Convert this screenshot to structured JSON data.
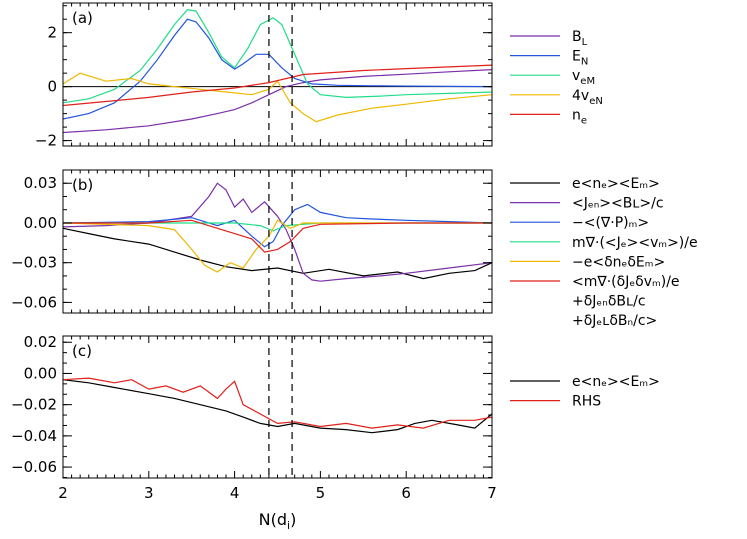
{
  "chart_data": [
    {
      "type": "line",
      "panel_label": "(a)",
      "xlim": [
        2,
        7
      ],
      "ylim": [
        -2.2,
        3.1
      ],
      "yticks": [
        -2,
        0,
        2
      ],
      "ytick_labels": [
        "−2",
        "0",
        "2"
      ],
      "vlines": [
        4.4,
        4.67
      ],
      "zero_line": true,
      "legend_position": "right",
      "series": [
        {
          "key": "BL",
          "color": "#7b2fa8",
          "x": [
            2.0,
            2.5,
            3.0,
            3.5,
            3.8,
            4.0,
            4.2,
            4.4,
            4.6,
            4.8,
            5.0,
            5.5,
            6.0,
            6.5,
            7.0
          ],
          "y": [
            -1.7,
            -1.6,
            -1.45,
            -1.2,
            -1.0,
            -0.85,
            -0.6,
            -0.3,
            0.0,
            0.15,
            0.25,
            0.38,
            0.46,
            0.55,
            0.63
          ]
        },
        {
          "key": "EN",
          "color": "#2255dd",
          "x": [
            2.0,
            2.3,
            2.6,
            2.9,
            3.1,
            3.3,
            3.45,
            3.55,
            3.7,
            3.85,
            4.0,
            4.1,
            4.25,
            4.4,
            4.55,
            4.7,
            4.9,
            5.2,
            5.6,
            6.0,
            6.5,
            7.0
          ],
          "y": [
            -1.2,
            -1.0,
            -0.6,
            0.2,
            1.0,
            1.9,
            2.5,
            2.4,
            1.8,
            1.0,
            0.65,
            0.85,
            1.2,
            1.2,
            0.7,
            0.3,
            0.1,
            0.05,
            0.03,
            0.02,
            0.01,
            0.0
          ]
        },
        {
          "key": "veM",
          "color": "#22dd88",
          "x": [
            2.0,
            2.3,
            2.6,
            2.9,
            3.1,
            3.3,
            3.45,
            3.55,
            3.7,
            3.85,
            4.0,
            4.15,
            4.3,
            4.45,
            4.55,
            4.7,
            4.85,
            5.0,
            5.3,
            5.7,
            6.0,
            6.5,
            7.0
          ],
          "y": [
            -0.6,
            -0.45,
            -0.1,
            0.6,
            1.4,
            2.3,
            2.85,
            2.8,
            2.0,
            1.1,
            0.7,
            1.4,
            2.3,
            2.55,
            2.3,
            1.2,
            0.1,
            -0.3,
            -0.4,
            -0.35,
            -0.3,
            -0.25,
            -0.2
          ]
        },
        {
          "key": "4veN",
          "color": "#f0b800",
          "x": [
            2.0,
            2.2,
            2.5,
            2.8,
            3.0,
            3.3,
            3.6,
            3.9,
            4.2,
            4.4,
            4.5,
            4.65,
            4.8,
            4.95,
            5.2,
            5.6,
            6.0,
            6.5,
            7.0
          ],
          "y": [
            0.1,
            0.5,
            0.2,
            0.3,
            0.1,
            0.0,
            -0.1,
            -0.2,
            -0.3,
            -0.1,
            0.2,
            -0.6,
            -1.0,
            -1.3,
            -1.05,
            -0.8,
            -0.65,
            -0.45,
            -0.3
          ]
        },
        {
          "key": "ne",
          "color": "#e0201a",
          "x": [
            2.0,
            2.5,
            3.0,
            3.5,
            4.0,
            4.4,
            4.8,
            5.5,
            6.0,
            6.5,
            7.0
          ],
          "y": [
            -0.7,
            -0.55,
            -0.4,
            -0.2,
            -0.05,
            0.15,
            0.45,
            0.6,
            0.67,
            0.73,
            0.8
          ]
        }
      ],
      "legend": [
        {
          "main": "B",
          "sub": "L",
          "rest": "",
          "color": "#7b2fa8"
        },
        {
          "main": "E",
          "sub": "N",
          "rest": "",
          "color": "#2255dd"
        },
        {
          "main": "v",
          "sub": "eM",
          "rest": "",
          "color": "#22dd88"
        },
        {
          "main": "4v",
          "sub": "eN",
          "rest": "",
          "color": "#f0b800"
        },
        {
          "main": "n",
          "sub": "e",
          "rest": "",
          "color": "#e0201a"
        }
      ]
    },
    {
      "type": "line",
      "panel_label": "(b)",
      "xlim": [
        2,
        7
      ],
      "ylim": [
        -0.068,
        0.04
      ],
      "yticks": [
        0.03,
        0.0,
        -0.03,
        -0.06
      ],
      "ytick_labels": [
        "0.03",
        "0.00",
        "−0.03",
        "−0.06"
      ],
      "vlines": [
        4.4,
        4.67
      ],
      "legend_position": "right",
      "series": [
        {
          "key": "black",
          "color": "#000000",
          "x": [
            2.0,
            2.3,
            2.6,
            3.0,
            3.3,
            3.6,
            3.9,
            4.2,
            4.5,
            4.8,
            5.1,
            5.5,
            5.9,
            6.2,
            6.5,
            6.8,
            7.0
          ],
          "y": [
            -0.004,
            -0.008,
            -0.012,
            -0.016,
            -0.022,
            -0.028,
            -0.033,
            -0.036,
            -0.034,
            -0.038,
            -0.035,
            -0.04,
            -0.037,
            -0.042,
            -0.038,
            -0.036,
            -0.03
          ]
        },
        {
          "key": "purple",
          "color": "#7b2fa8",
          "x": [
            2.0,
            2.5,
            3.0,
            3.5,
            3.7,
            3.8,
            3.9,
            4.0,
            4.1,
            4.2,
            4.35,
            4.5,
            4.6,
            4.7,
            4.8,
            4.9,
            5.0,
            5.3,
            5.7,
            6.0,
            6.5,
            7.0
          ],
          "y": [
            -0.003,
            -0.002,
            0.0,
            0.005,
            0.02,
            0.03,
            0.025,
            0.012,
            0.018,
            0.008,
            0.016,
            0.005,
            -0.005,
            -0.02,
            -0.038,
            -0.043,
            -0.044,
            -0.042,
            -0.04,
            -0.038,
            -0.034,
            -0.03
          ]
        },
        {
          "key": "blue",
          "color": "#2255dd",
          "x": [
            2.0,
            3.0,
            3.5,
            3.8,
            4.0,
            4.2,
            4.35,
            4.45,
            4.55,
            4.7,
            4.85,
            5.0,
            5.3,
            5.6,
            6.0,
            6.5,
            7.0
          ],
          "y": [
            0.0,
            0.001,
            0.004,
            -0.002,
            0.002,
            -0.01,
            -0.018,
            -0.014,
            -0.002,
            0.01,
            0.014,
            0.008,
            0.004,
            0.003,
            0.002,
            0.001,
            0.0
          ]
        },
        {
          "key": "green",
          "color": "#22dd88",
          "x": [
            2.0,
            3.0,
            4.0,
            4.3,
            4.45,
            4.6,
            5.0,
            6.0,
            7.0
          ],
          "y": [
            0.0,
            0.0,
            0.0,
            -0.002,
            -0.006,
            -0.002,
            0.0,
            0.0,
            0.0
          ]
        },
        {
          "key": "yellow",
          "color": "#f0b800",
          "x": [
            2.0,
            3.0,
            3.3,
            3.5,
            3.65,
            3.8,
            3.95,
            4.1,
            4.25,
            4.4,
            4.5,
            4.65,
            4.8,
            5.0,
            6.0,
            7.0
          ],
          "y": [
            0.0,
            -0.002,
            -0.005,
            -0.02,
            -0.032,
            -0.037,
            -0.03,
            -0.034,
            -0.02,
            -0.01,
            0.002,
            -0.004,
            0.0,
            0.0,
            0.0,
            0.0
          ]
        },
        {
          "key": "red",
          "color": "#e0201a",
          "x": [
            2.0,
            3.0,
            3.5,
            3.8,
            4.0,
            4.2,
            4.35,
            4.5,
            4.65,
            4.8,
            5.0,
            6.0,
            7.0
          ],
          "y": [
            0.0,
            0.0,
            0.002,
            -0.004,
            -0.008,
            -0.012,
            -0.022,
            -0.02,
            -0.014,
            -0.004,
            -0.001,
            0.0,
            0.0
          ]
        }
      ],
      "legend": [
        {
          "text": "e<nₑ><Eₘ>",
          "color": "#000000"
        },
        {
          "text": "<Jₑₙ><Bʟ>/c",
          "color": "#7b2fa8"
        },
        {
          "text": "−<(∇·P)ₘ>",
          "color": "#2255dd"
        },
        {
          "text": "m∇·(<Jₑ><vₘ>)/e",
          "color": "#22dd88"
        },
        {
          "text": "−e<δnₑδEₘ>",
          "color": "#f0b800"
        },
        {
          "text": "<m∇·(δJₑδvₘ)/e",
          "color": "#e0201a"
        },
        {
          "text": "+δJₑₙδBʟ/c",
          "color": null
        },
        {
          "text": "+δJₑʟδBₙ/c>",
          "color": null
        }
      ]
    },
    {
      "type": "line",
      "panel_label": "(c)",
      "xlim": [
        2,
        7
      ],
      "ylim": [
        -0.067,
        0.024
      ],
      "yticks": [
        0.02,
        0.0,
        -0.02,
        -0.04,
        -0.06
      ],
      "ytick_labels": [
        "0.02",
        "0.00",
        "−0.02",
        "−0.04",
        "−0.06"
      ],
      "xticks": [
        2,
        3,
        4,
        5,
        6,
        7
      ],
      "xtick_labels": [
        "2",
        "3",
        "4",
        "5",
        "6",
        "7"
      ],
      "xlabel_main": "N(d",
      "xlabel_sub": "i",
      "xlabel_end": ")",
      "vlines": [
        4.4,
        4.67
      ],
      "legend_position": "right",
      "series": [
        {
          "key": "black",
          "color": "#000000",
          "x": [
            2.0,
            2.3,
            2.6,
            3.0,
            3.3,
            3.6,
            3.9,
            4.1,
            4.3,
            4.5,
            4.7,
            5.0,
            5.3,
            5.6,
            5.9,
            6.1,
            6.3,
            6.6,
            6.8,
            7.0
          ],
          "y": [
            -0.004,
            -0.006,
            -0.009,
            -0.013,
            -0.016,
            -0.02,
            -0.024,
            -0.028,
            -0.032,
            -0.034,
            -0.032,
            -0.035,
            -0.036,
            -0.038,
            -0.036,
            -0.032,
            -0.03,
            -0.033,
            -0.035,
            -0.026
          ]
        },
        {
          "key": "red",
          "color": "#e0201a",
          "x": [
            2.0,
            2.3,
            2.6,
            2.8,
            3.0,
            3.2,
            3.4,
            3.6,
            3.8,
            3.9,
            4.0,
            4.1,
            4.3,
            4.5,
            4.7,
            5.0,
            5.3,
            5.6,
            5.9,
            6.2,
            6.5,
            6.8,
            7.0
          ],
          "y": [
            -0.004,
            -0.003,
            -0.006,
            -0.004,
            -0.01,
            -0.008,
            -0.012,
            -0.008,
            -0.016,
            -0.01,
            -0.005,
            -0.02,
            -0.026,
            -0.032,
            -0.031,
            -0.034,
            -0.032,
            -0.035,
            -0.033,
            -0.035,
            -0.03,
            -0.03,
            -0.028
          ]
        }
      ],
      "legend": [
        {
          "text": "e<nₑ><Eₘ>",
          "color": "#000000"
        },
        {
          "text": "RHS",
          "color": "#e0201a"
        }
      ]
    }
  ]
}
